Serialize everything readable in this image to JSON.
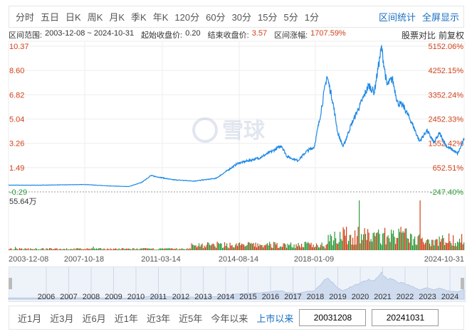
{
  "toolbar": {
    "periods": [
      "分时",
      "五日",
      "日K",
      "周K",
      "月K",
      "季K",
      "年K",
      "120分",
      "60分",
      "30分",
      "15分",
      "5分",
      "1分"
    ],
    "interval_stats": "区间统计",
    "fullscreen": "全屏显示"
  },
  "info": {
    "range_label": "区间范围:",
    "range": "2003-12-08 ~ 2024-10-31",
    "start_label": "起始收盘价:",
    "start": "0.20",
    "end_label": "结束收盘价:",
    "end": "3.57",
    "change_label": "区间涨幅:",
    "change": "1707.59%",
    "compare": "股票对比",
    "adjust": "前复权"
  },
  "watermark": "雪球",
  "colors": {
    "line": "#1e88e5",
    "up": "#d0421b",
    "down": "#2e9a3a",
    "accent": "#1a6fc2"
  },
  "chart_data": {
    "type": "line",
    "ylim": [
      -0.29,
      10.37
    ],
    "y_ticks": [
      "10.37",
      "8.60",
      "6.82",
      "5.04",
      "3.26",
      "1.49",
      "-0.29"
    ],
    "y2_ticks": [
      "5152.06%",
      "4252.15%",
      "3352.24%",
      "2452.33%",
      "1552.42%",
      "652.51%",
      "-247.40%"
    ],
    "x_ticks": [
      "2003-12-08",
      "2007-10-18",
      "2011-03-14",
      "2014-08-14",
      "2018-01-09",
      "2024-10-31"
    ],
    "volume_max_label": "55.64万",
    "series": [
      {
        "x": [
          "2003-12",
          "2005-06",
          "2007-06",
          "2008-06",
          "2009-06",
          "2010-01",
          "2010-06",
          "2011-06",
          "2012-06",
          "2013-06",
          "2014-06",
          "2015-06",
          "2016-01",
          "2016-06",
          "2016-09",
          "2017-03",
          "2017-08",
          "2017-12",
          "2018-03",
          "2018-07",
          "2018-10",
          "2019-01",
          "2019-04",
          "2019-08",
          "2020-01",
          "2020-06",
          "2020-09",
          "2021-01",
          "2021-04",
          "2021-07",
          "2021-10",
          "2022-01",
          "2022-06",
          "2022-10",
          "2023-02",
          "2023-06",
          "2023-09",
          "2024-01",
          "2024-04",
          "2024-07",
          "2024-10"
        ],
        "values": [
          0.2,
          0.2,
          0.25,
          0.15,
          0.1,
          0.4,
          0.9,
          0.6,
          0.5,
          0.7,
          1.8,
          2.2,
          2.7,
          3.1,
          2.3,
          2.0,
          2.7,
          3.0,
          5.0,
          8.2,
          6.5,
          4.0,
          3.0,
          4.5,
          6.0,
          7.5,
          7.0,
          10.3,
          7.5,
          8.0,
          6.2,
          6.0,
          4.7,
          3.4,
          4.2,
          3.3,
          4.0,
          3.0,
          2.8,
          2.5,
          3.57
        ]
      }
    ]
  },
  "navigator": {
    "years": [
      "2006",
      "2007",
      "2008",
      "2009",
      "2010",
      "2011",
      "2012",
      "2013",
      "2014",
      "2015",
      "2016",
      "2017",
      "2018",
      "2019",
      "2020",
      "2021",
      "2022",
      "2023",
      "2024"
    ]
  },
  "bottom": {
    "ranges": [
      "近1月",
      "近3月",
      "近6月",
      "近1年",
      "近3年",
      "近5年",
      "今年以来",
      "上市以来"
    ],
    "start": "20031208",
    "end": "20241031"
  }
}
